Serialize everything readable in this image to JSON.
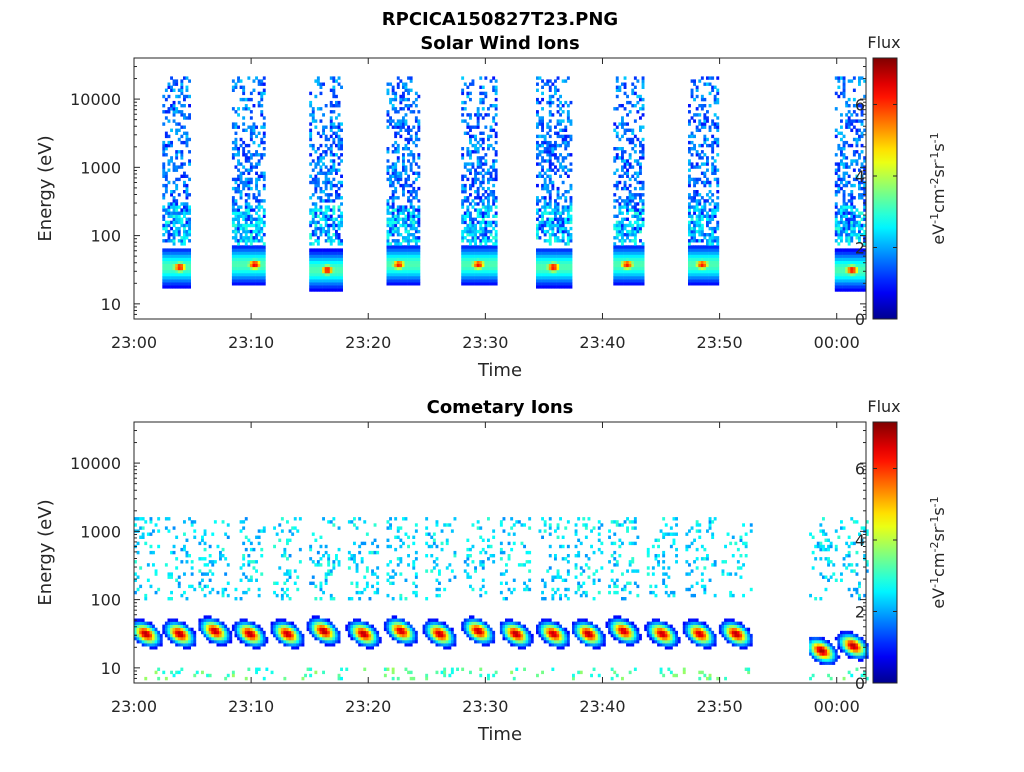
{
  "figure": {
    "title": "RPCICA150827T23.PNG"
  },
  "colorscale": {
    "name": "jet",
    "stops": [
      "#00008f",
      "#0000ff",
      "#00ffff",
      "#ffff00",
      "#ff0000",
      "#800000"
    ]
  },
  "chart_data": [
    {
      "type": "heatmap",
      "title": "Solar Wind Ions",
      "xlabel": "Time",
      "ylabel": "Energy (eV)",
      "x_ticks": [
        "23:00",
        "23:10",
        "23:20",
        "23:30",
        "23:40",
        "23:50",
        "00:00"
      ],
      "x_range_minutes": [
        0,
        62.5
      ],
      "y_scale": "log",
      "y_ticks": [
        10,
        100,
        1000,
        10000
      ],
      "y_tick_labels": [
        "10",
        "100",
        "1000",
        "10000"
      ],
      "y_range": [
        6,
        40000
      ],
      "colorbar": {
        "title": "Flux",
        "label": "eV-1cm-2sr-1s-1",
        "range": [
          0,
          7.3
        ],
        "ticks": [
          0,
          2,
          4,
          6
        ],
        "tick_labels": [
          "0",
          "2",
          "4",
          "6"
        ]
      },
      "pulses": [
        {
          "t_start": 2.3,
          "t_end": 4.7,
          "peak_t": 3.8,
          "peak_energy": 33,
          "peak_flux": 6.4
        },
        {
          "t_start": 8.3,
          "t_end": 11.2,
          "peak_t": 10.2,
          "peak_energy": 36,
          "peak_flux": 6.6
        },
        {
          "t_start": 14.9,
          "t_end": 17.8,
          "peak_t": 16.4,
          "peak_energy": 30,
          "peak_flux": 6.5
        },
        {
          "t_start": 21.4,
          "t_end": 24.4,
          "peak_t": 22.5,
          "peak_energy": 36,
          "peak_flux": 6.3
        },
        {
          "t_start": 27.9,
          "t_end": 30.8,
          "peak_t": 29.3,
          "peak_energy": 36,
          "peak_flux": 6.4
        },
        {
          "t_start": 34.2,
          "t_end": 37.2,
          "peak_t": 35.7,
          "peak_energy": 33,
          "peak_flux": 6.5
        },
        {
          "t_start": 40.7,
          "t_end": 43.4,
          "peak_t": 42.0,
          "peak_energy": 36,
          "peak_flux": 6.3
        },
        {
          "t_start": 47.1,
          "t_end": 49.8,
          "peak_t": 48.4,
          "peak_energy": 36,
          "peak_flux": 6.3
        },
        {
          "t_start": 59.8,
          "t_end": 62.4,
          "peak_t": 61.2,
          "peak_energy": 30,
          "peak_flux": 6.5
        }
      ]
    },
    {
      "type": "heatmap",
      "title": "Cometary Ions",
      "xlabel": "Time",
      "ylabel": "Energy (eV)",
      "x_ticks": [
        "23:00",
        "23:10",
        "23:20",
        "23:30",
        "23:40",
        "23:50",
        "00:00"
      ],
      "x_range_minutes": [
        0,
        62.5
      ],
      "y_scale": "log",
      "y_ticks": [
        10,
        100,
        1000,
        10000
      ],
      "y_tick_labels": [
        "10",
        "100",
        "1000",
        "10000"
      ],
      "y_range": [
        6,
        40000
      ],
      "colorbar": {
        "title": "Flux",
        "label": "eV-1cm-2sr-1s-1",
        "range": [
          0,
          7.3
        ],
        "ticks": [
          0,
          2,
          4,
          6
        ],
        "tick_labels": [
          "0",
          "2",
          "4",
          "6"
        ]
      },
      "data_gap_minutes": [
        52.9,
        57.6
      ],
      "pulses": [
        {
          "peak_t": 0.9,
          "peak_energy": 30,
          "peak_flux": 7.0
        },
        {
          "peak_t": 3.8,
          "peak_energy": 30,
          "peak_flux": 7.0
        },
        {
          "peak_t": 6.8,
          "peak_energy": 33,
          "peak_flux": 6.9
        },
        {
          "peak_t": 9.8,
          "peak_energy": 30,
          "peak_flux": 7.0
        },
        {
          "peak_t": 13.0,
          "peak_energy": 30,
          "peak_flux": 6.9
        },
        {
          "peak_t": 16.1,
          "peak_energy": 33,
          "peak_flux": 7.0
        },
        {
          "peak_t": 19.5,
          "peak_energy": 30,
          "peak_flux": 7.0
        },
        {
          "peak_t": 22.7,
          "peak_energy": 33,
          "peak_flux": 6.8
        },
        {
          "peak_t": 26.0,
          "peak_energy": 30,
          "peak_flux": 6.9
        },
        {
          "peak_t": 29.3,
          "peak_energy": 33,
          "peak_flux": 6.9
        },
        {
          "peak_t": 32.5,
          "peak_energy": 30,
          "peak_flux": 7.0
        },
        {
          "peak_t": 35.7,
          "peak_energy": 30,
          "peak_flux": 6.9
        },
        {
          "peak_t": 38.7,
          "peak_energy": 30,
          "peak_flux": 7.0
        },
        {
          "peak_t": 41.7,
          "peak_energy": 33,
          "peak_flux": 6.8
        },
        {
          "peak_t": 45.0,
          "peak_energy": 30,
          "peak_flux": 6.9
        },
        {
          "peak_t": 48.2,
          "peak_energy": 30,
          "peak_flux": 6.8
        },
        {
          "peak_t": 51.3,
          "peak_energy": 30,
          "peak_flux": 7.0
        },
        {
          "peak_t": 58.6,
          "peak_energy": 17,
          "peak_flux": 7.1
        },
        {
          "peak_t": 61.3,
          "peak_energy": 20,
          "peak_flux": 7.0
        }
      ]
    }
  ]
}
